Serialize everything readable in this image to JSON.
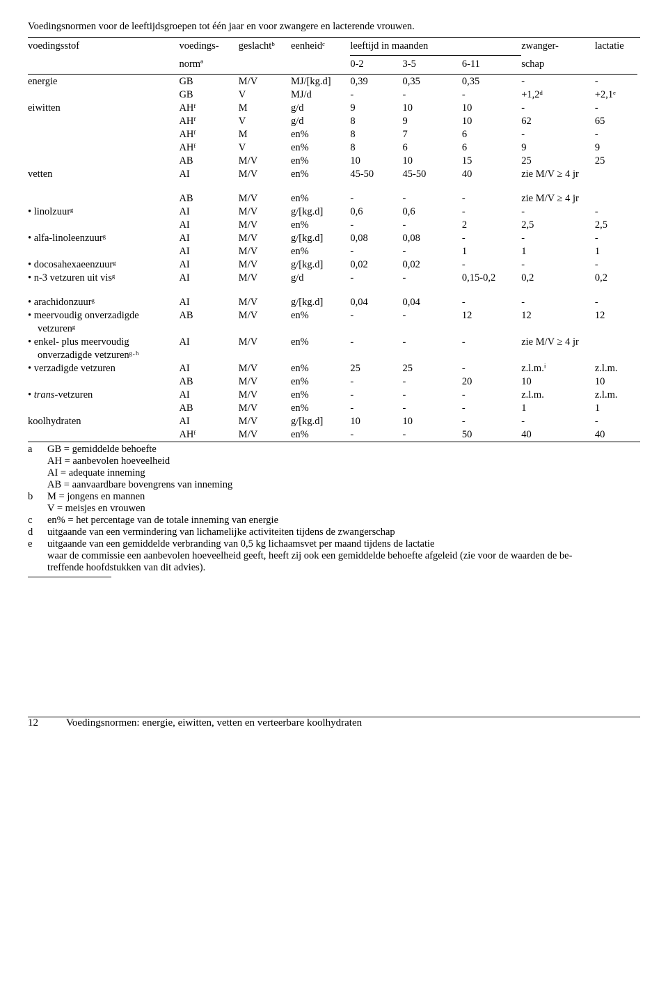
{
  "title": "Voedingsnormen voor de leeftijdsgroepen tot één jaar en voor zwangere en lacterende vrouwen.",
  "header": {
    "col1": "voedingsstof",
    "col2_l1": "voedings-",
    "col2_l2": "normª",
    "col3": "geslachtᵇ",
    "col4": "eenheidᶜ",
    "leef": "leeftijd in maanden",
    "a02": "0-2",
    "a35": "3-5",
    "a611": "6-11",
    "zw_l1": "zwanger-",
    "zw_l2": "schap",
    "lact": "lactatie"
  },
  "rows": [
    [
      "energie",
      "GB",
      "M/V",
      "MJ/[kg.d]",
      "0,39",
      "0,35",
      "0,35",
      "-",
      "-"
    ],
    [
      "",
      "GB",
      "V",
      "MJ/d",
      "-",
      "-",
      "-",
      "+1,2ᵈ",
      "+2,1ᵉ"
    ],
    [
      "eiwitten",
      "AHᶠ",
      "M",
      "g/d",
      "9",
      "10",
      "10",
      "-",
      "-"
    ],
    [
      "",
      "AHᶠ",
      "V",
      "g/d",
      "8",
      "9",
      "10",
      "62",
      "65"
    ],
    [
      "",
      "AHᶠ",
      "M",
      "en%",
      "8",
      "7",
      "6",
      "-",
      "-"
    ],
    [
      "",
      "AHᶠ",
      "V",
      "en%",
      "8",
      "6",
      "6",
      "9",
      "9"
    ],
    [
      "",
      "AB",
      "M/V",
      "en%",
      "10",
      "10",
      "15",
      "25",
      "25"
    ],
    [
      "vetten",
      "AI",
      "M/V",
      "en%",
      "45-50",
      "45-50",
      "40",
      "zie M/V ≥ 4 jr",
      ""
    ]
  ],
  "rows2": [
    [
      "",
      "AB",
      "M/V",
      "en%",
      "-",
      "-",
      "-",
      "zie M/V ≥ 4 jr",
      ""
    ],
    [
      "• linolzuurᵍ",
      "AI",
      "M/V",
      "g/[kg.d]",
      "0,6",
      "0,6",
      "-",
      "-",
      "-"
    ],
    [
      "",
      "AI",
      "M/V",
      "en%",
      "-",
      "-",
      "2",
      "2,5",
      "2,5"
    ],
    [
      "• alfa-linoleenzuurᵍ",
      "AI",
      "M/V",
      "g/[kg.d]",
      "0,08",
      "0,08",
      "-",
      "-",
      "-"
    ],
    [
      "",
      "AI",
      "M/V",
      "en%",
      "-",
      "-",
      "1",
      "1",
      "1"
    ],
    [
      "• docosahexaeenzuurᵍ",
      "AI",
      "M/V",
      "g/[kg.d]",
      "0,02",
      "0,02",
      "-",
      "-",
      "-"
    ],
    [
      "• n-3 vetzuren uit visᵍ",
      "AI",
      "M/V",
      "g/d",
      "-",
      "-",
      "0,15-0,2",
      "0,2",
      "0,2"
    ]
  ],
  "rows3": [
    [
      "• arachidonzuurᵍ",
      "AI",
      "M/V",
      "g/[kg.d]",
      "0,04",
      "0,04",
      "-",
      "-",
      "-"
    ],
    [
      "• meervoudig onverzadigde",
      "AB",
      "M/V",
      "en%",
      "-",
      "-",
      "12",
      "12",
      "12"
    ],
    [
      "   vetzurenᵍ",
      "",
      "",
      "",
      "",
      "",
      "",
      "",
      ""
    ],
    [
      "• enkel- plus meervoudig",
      "AI",
      "M/V",
      "en%",
      "-",
      "-",
      "-",
      "zie M/V ≥ 4 jr",
      ""
    ],
    [
      "   onverzadigde vetzurenᵍ·ʰ",
      "",
      "",
      "",
      "",
      "",
      "",
      "",
      ""
    ],
    [
      "• verzadigde vetzuren",
      "AI",
      "M/V",
      "en%",
      "25",
      "25",
      "-",
      "z.l.m.ⁱ",
      "z.l.m."
    ],
    [
      "",
      "AB",
      "M/V",
      "en%",
      "-",
      "-",
      "20",
      "10",
      "10"
    ],
    [
      "• <i>trans</i>-vetzuren",
      "AI",
      "M/V",
      "en%",
      "-",
      "-",
      "-",
      "z.l.m.",
      "z.l.m."
    ],
    [
      "",
      "AB",
      "M/V",
      "en%",
      "-",
      "-",
      "-",
      "1",
      "1"
    ],
    [
      "koolhydraten",
      "AI",
      "M/V",
      "g/[kg.d]",
      "10",
      "10",
      "-",
      "-",
      "-"
    ],
    [
      "",
      "AHᶠ",
      "M/V",
      "en%",
      "-",
      "-",
      "50",
      "40",
      "40"
    ]
  ],
  "notes": [
    [
      "a",
      "GB = gemiddelde behoefte"
    ],
    [
      "",
      "AH = aanbevolen hoeveelheid"
    ],
    [
      "",
      "AI = adequate inneming"
    ],
    [
      "",
      "AB = aanvaardbare bovengrens van inneming"
    ],
    [
      "b",
      "M = jongens en mannen"
    ],
    [
      "",
      "V = meisjes en vrouwen"
    ],
    [
      "c",
      "en% = het percentage van de totale inneming van energie"
    ],
    [
      "d",
      "uitgaande van een vermindering van lichamelijke activiteiten tijdens de zwangerschap"
    ],
    [
      "e",
      "uitgaande van een gemiddelde verbranding van 0,5 kg lichaamsvet per maand tijdens de lactatie"
    ],
    [
      "",
      "waar de commissie een aanbevolen hoeveelheid geeft, heeft zij ook een gemiddelde behoefte afgeleid (zie voor de waarden de be-"
    ],
    [
      "",
      "treffende hoofdstukken van dit advies)."
    ]
  ],
  "footer": {
    "page": "12",
    "title": "Voedingsnormen: energie, eiwitten, vetten en verteerbare koolhydraten"
  }
}
